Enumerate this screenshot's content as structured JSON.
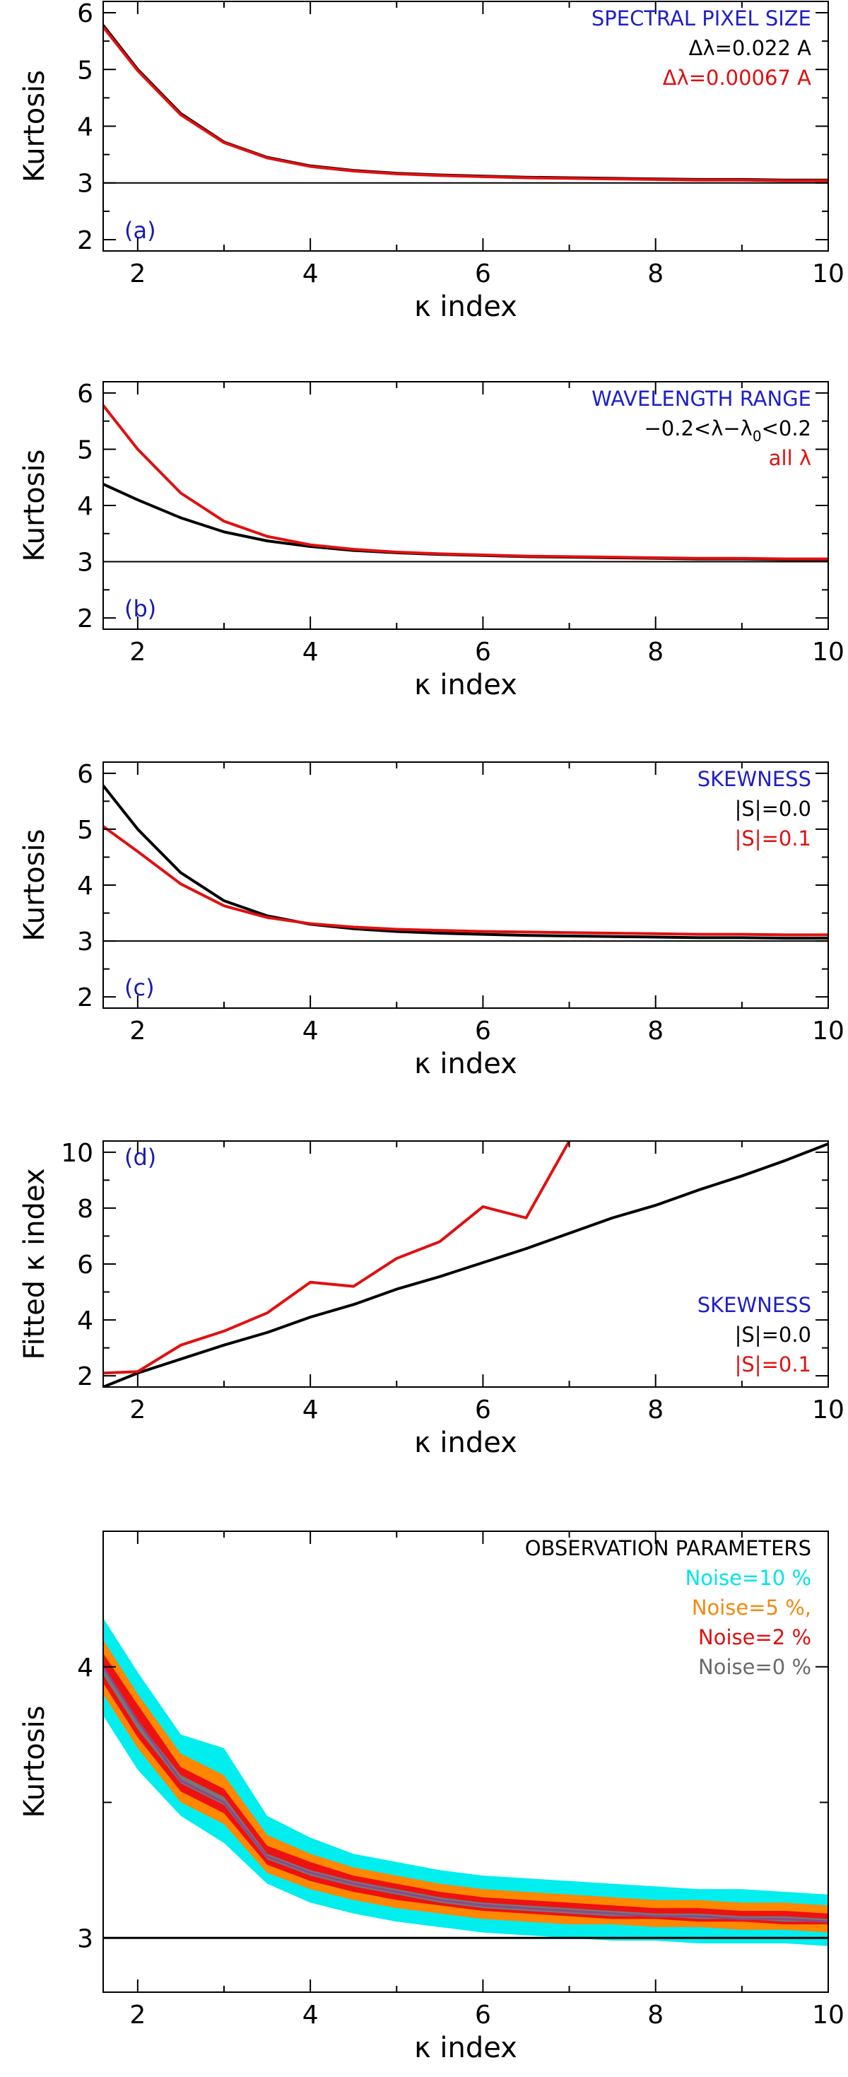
{
  "figure": {
    "domain": "Chart"
  },
  "chart_data": [
    {
      "type": "line",
      "panel_label": "(a)",
      "xlabel": "κ index",
      "ylabel": "Kurtosis",
      "xlim": [
        1.6,
        10
      ],
      "ylim": [
        1.8,
        6.2
      ],
      "xticks": [
        2,
        4,
        6,
        8,
        10
      ],
      "yticks": [
        2,
        3,
        4,
        5,
        6
      ],
      "reference_line": 3,
      "legend": {
        "placement": "top-right",
        "title": "SPECTRAL PIXEL SIZE",
        "title_color": "#1f1fc8",
        "entries": [
          {
            "label": "Δλ=0.022 A",
            "color": "#000000"
          },
          {
            "label": "Δλ=0.00067 A",
            "color": "#e01010"
          }
        ]
      },
      "x": [
        1.6,
        2,
        2.5,
        3,
        3.5,
        4,
        4.5,
        5,
        5.5,
        6,
        6.5,
        7,
        7.5,
        8,
        8.5,
        9,
        9.5,
        10
      ],
      "series": [
        {
          "color": "#000000",
          "values": [
            5.78,
            5.0,
            4.22,
            3.72,
            3.45,
            3.3,
            3.22,
            3.17,
            3.14,
            3.12,
            3.1,
            3.09,
            3.08,
            3.07,
            3.06,
            3.06,
            3.05,
            3.05
          ]
        },
        {
          "color": "#e01010",
          "values": [
            5.75,
            4.98,
            4.2,
            3.71,
            3.44,
            3.29,
            3.21,
            3.16,
            3.13,
            3.11,
            3.09,
            3.08,
            3.07,
            3.06,
            3.05,
            3.05,
            3.04,
            3.04
          ]
        }
      ]
    },
    {
      "type": "line",
      "panel_label": "(b)",
      "xlabel": "κ index",
      "ylabel": "Kurtosis",
      "xlim": [
        1.6,
        10
      ],
      "ylim": [
        1.8,
        6.2
      ],
      "xticks": [
        2,
        4,
        6,
        8,
        10
      ],
      "yticks": [
        2,
        3,
        4,
        5,
        6
      ],
      "reference_line": 3,
      "legend": {
        "placement": "top-right",
        "title": "WAVELENGTH RANGE",
        "title_color": "#1f1fc8",
        "entries": [
          {
            "label": "−0.2<λ−λ",
            "sub": "0",
            "label_after": "<0.2",
            "color": "#000000"
          },
          {
            "label": "all λ",
            "color": "#e01010"
          }
        ]
      },
      "x": [
        1.6,
        2,
        2.5,
        3,
        3.5,
        4,
        4.5,
        5,
        5.5,
        6,
        6.5,
        7,
        7.5,
        8,
        8.5,
        9,
        9.5,
        10
      ],
      "series": [
        {
          "color": "#000000",
          "values": [
            4.38,
            4.1,
            3.78,
            3.53,
            3.37,
            3.27,
            3.2,
            3.16,
            3.13,
            3.11,
            3.09,
            3.08,
            3.07,
            3.06,
            3.05,
            3.05,
            3.04,
            3.04
          ]
        },
        {
          "color": "#e01010",
          "values": [
            5.78,
            5.0,
            4.22,
            3.72,
            3.45,
            3.3,
            3.22,
            3.17,
            3.14,
            3.12,
            3.1,
            3.09,
            3.08,
            3.07,
            3.06,
            3.06,
            3.05,
            3.05
          ]
        }
      ]
    },
    {
      "type": "line",
      "panel_label": "(c)",
      "xlabel": "κ index",
      "ylabel": "Kurtosis",
      "xlim": [
        1.6,
        10
      ],
      "ylim": [
        1.8,
        6.2
      ],
      "xticks": [
        2,
        4,
        6,
        8,
        10
      ],
      "yticks": [
        2,
        3,
        4,
        5,
        6
      ],
      "reference_line": 3,
      "legend": {
        "placement": "top-right",
        "title": "SKEWNESS",
        "title_color": "#1f1fc8",
        "entries": [
          {
            "label": "|S|=0.0",
            "color": "#000000"
          },
          {
            "label": "|S|=0.1",
            "color": "#e01010"
          }
        ]
      },
      "x": [
        1.6,
        2,
        2.5,
        3,
        3.5,
        4,
        4.5,
        5,
        5.5,
        6,
        6.5,
        7,
        7.5,
        8,
        8.5,
        9,
        9.5,
        10
      ],
      "series": [
        {
          "color": "#000000",
          "values": [
            5.78,
            5.0,
            4.22,
            3.72,
            3.45,
            3.3,
            3.22,
            3.17,
            3.14,
            3.12,
            3.1,
            3.09,
            3.08,
            3.07,
            3.06,
            3.06,
            3.05,
            3.05
          ]
        },
        {
          "color": "#e01010",
          "values": [
            5.05,
            4.6,
            4.02,
            3.63,
            3.42,
            3.31,
            3.25,
            3.21,
            3.19,
            3.17,
            3.16,
            3.15,
            3.14,
            3.13,
            3.12,
            3.12,
            3.11,
            3.11
          ]
        }
      ]
    },
    {
      "type": "line",
      "panel_label": "(d)",
      "xlabel": "κ index",
      "ylabel": "Fitted κ index",
      "xlim": [
        1.6,
        10
      ],
      "ylim": [
        1.6,
        10.4
      ],
      "xticks": [
        2,
        4,
        6,
        8,
        10
      ],
      "yticks": [
        2,
        4,
        6,
        8,
        10
      ],
      "legend": {
        "placement": "bottom-right",
        "title": "SKEWNESS",
        "title_color": "#1f1fc8",
        "entries": [
          {
            "label": "|S|=0.0",
            "color": "#000000"
          },
          {
            "label": "|S|=0.1",
            "color": "#e01010"
          }
        ]
      },
      "x": [
        1.6,
        2,
        2.5,
        3,
        3.5,
        4,
        4.5,
        5,
        5.5,
        6,
        6.5,
        7,
        7.5,
        8,
        8.5,
        9,
        9.5,
        10
      ],
      "series": [
        {
          "color": "#000000",
          "values": [
            1.6,
            2.1,
            2.6,
            3.1,
            3.55,
            4.1,
            4.55,
            5.1,
            5.55,
            6.05,
            6.55,
            7.1,
            7.65,
            8.1,
            8.65,
            9.15,
            9.7,
            10.3
          ]
        },
        {
          "color": "#e01010",
          "x": [
            1.6,
            2,
            2.5,
            3,
            3.5,
            4,
            4.5,
            5,
            5.5,
            6,
            6.5,
            7
          ],
          "values": [
            2.1,
            2.15,
            3.1,
            3.6,
            4.25,
            5.35,
            5.2,
            6.2,
            6.8,
            8.05,
            7.65,
            10.4
          ]
        }
      ]
    },
    {
      "type": "area",
      "xlabel": "κ index",
      "ylabel": "Kurtosis",
      "xlim": [
        1.6,
        10
      ],
      "ylim": [
        2.8,
        4.5
      ],
      "xticks": [
        2,
        4,
        6,
        8,
        10
      ],
      "yticks": [
        3,
        4
      ],
      "minor_yticks": [
        3.5
      ],
      "reference_line": 3,
      "legend": {
        "placement": "top-right",
        "title": "OBSERVATION PARAMETERS",
        "title_color": "#000000",
        "entries": [
          {
            "label": "Noise=10 %",
            "color": "#00e5e5"
          },
          {
            "label": "Noise=5 %,",
            "color": "#f08a10"
          },
          {
            "label": "Noise=2 %",
            "color": "#e01010"
          },
          {
            "label": "Noise=0 %",
            "color": "#6a6a6a"
          }
        ]
      },
      "x": [
        1.6,
        2,
        2.5,
        3,
        3.5,
        4,
        4.5,
        5,
        5.5,
        6,
        6.5,
        7,
        7.5,
        8,
        8.5,
        9,
        9.5,
        10
      ],
      "center": [
        4.0,
        3.8,
        3.58,
        3.5,
        3.3,
        3.24,
        3.2,
        3.17,
        3.14,
        3.12,
        3.11,
        3.1,
        3.09,
        3.08,
        3.08,
        3.07,
        3.07,
        3.06
      ],
      "bands": [
        {
          "name": "Noise=10 %",
          "color": "#00eeee",
          "upper": [
            4.18,
            3.98,
            3.75,
            3.7,
            3.45,
            3.37,
            3.31,
            3.28,
            3.25,
            3.23,
            3.22,
            3.21,
            3.2,
            3.19,
            3.18,
            3.18,
            3.17,
            3.16
          ],
          "lower": [
            3.82,
            3.62,
            3.45,
            3.35,
            3.2,
            3.13,
            3.09,
            3.06,
            3.04,
            3.02,
            3.01,
            3.0,
            2.99,
            2.99,
            2.98,
            2.98,
            2.98,
            2.97
          ]
        },
        {
          "name": "Noise=5 %,",
          "color": "#ff8800",
          "upper": [
            4.1,
            3.9,
            3.68,
            3.6,
            3.38,
            3.31,
            3.26,
            3.23,
            3.2,
            3.18,
            3.17,
            3.16,
            3.15,
            3.14,
            3.14,
            3.13,
            3.13,
            3.12
          ],
          "lower": [
            3.9,
            3.7,
            3.5,
            3.42,
            3.24,
            3.18,
            3.14,
            3.11,
            3.09,
            3.07,
            3.06,
            3.05,
            3.05,
            3.04,
            3.04,
            3.03,
            3.03,
            3.02
          ]
        },
        {
          "name": "Noise=2 %",
          "color": "#ee1111",
          "upper": [
            4.05,
            3.86,
            3.63,
            3.55,
            3.34,
            3.28,
            3.23,
            3.2,
            3.17,
            3.15,
            3.14,
            3.13,
            3.12,
            3.11,
            3.11,
            3.1,
            3.1,
            3.09
          ],
          "lower": [
            3.94,
            3.74,
            3.54,
            3.46,
            3.27,
            3.21,
            3.17,
            3.14,
            3.12,
            3.1,
            3.09,
            3.08,
            3.07,
            3.07,
            3.06,
            3.06,
            3.05,
            3.05
          ]
        },
        {
          "name": "Noise=0 %",
          "color": "#777777",
          "upper": [
            4.0,
            3.8,
            3.6,
            3.52,
            3.31,
            3.25,
            3.21,
            3.18,
            3.15,
            3.13,
            3.12,
            3.11,
            3.1,
            3.09,
            3.09,
            3.08,
            3.08,
            3.07
          ],
          "lower": [
            3.97,
            3.77,
            3.57,
            3.49,
            3.29,
            3.23,
            3.19,
            3.16,
            3.13,
            3.11,
            3.1,
            3.09,
            3.08,
            3.08,
            3.07,
            3.07,
            3.06,
            3.06
          ]
        }
      ]
    }
  ]
}
